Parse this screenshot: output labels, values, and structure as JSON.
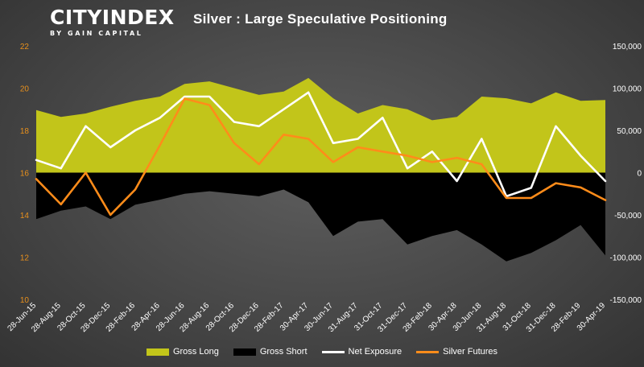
{
  "header": {
    "logo_main": "CITYINDEX",
    "logo_sub": "BY GAIN CAPITAL",
    "title": "Silver : Large Speculative Positioning"
  },
  "colors": {
    "gross_long": "#c2c51a",
    "gross_short": "#000000",
    "net_exposure": "#ffffff",
    "silver_futures": "#ff8c1a",
    "left_axis_text": "#e8901c",
    "right_axis_text": "#ffffff"
  },
  "chart_data": {
    "type": "area",
    "title": "Silver : Large Speculative Positioning",
    "x": [
      "28-Jun-15",
      "28-Aug-15",
      "28-Oct-15",
      "28-Dec-15",
      "28-Feb-16",
      "28-Apr-16",
      "28-Jun-16",
      "28-Aug-16",
      "28-Oct-16",
      "28-Dec-16",
      "28-Feb-17",
      "30-Apr-17",
      "30-Jun-17",
      "31-Aug-17",
      "31-Oct-17",
      "31-Dec-17",
      "28-Feb-18",
      "30-Apr-18",
      "30-Jun-18",
      "31-Aug-18",
      "31-Oct-18",
      "31-Dec-18",
      "28-Feb-19",
      "30-Apr-19"
    ],
    "left_axis": {
      "min": 10,
      "max": 22,
      "ticks": [
        10,
        12,
        14,
        16,
        18,
        20,
        22
      ]
    },
    "right_axis": {
      "min": -150000,
      "max": 150000,
      "ticks": [
        -150000,
        -100000,
        -50000,
        0,
        50000,
        100000,
        150000
      ],
      "tick_labels": [
        "-150,000",
        "-100,000",
        "-50,000",
        "0",
        "50,000",
        "100,000",
        "150,000"
      ]
    },
    "legend_position": "bottom",
    "series": [
      {
        "name": "Gross Long",
        "axis": "right",
        "style": "area",
        "values": [
          74000,
          66000,
          70000,
          78000,
          85000,
          90000,
          105000,
          108000,
          100000,
          92000,
          96000,
          112000,
          88000,
          70000,
          80000,
          75000,
          62000,
          66000,
          90000,
          88000,
          82000,
          95000,
          85000,
          86000
        ]
      },
      {
        "name": "Gross Short",
        "axis": "right",
        "style": "area",
        "values": [
          -55000,
          -45000,
          -40000,
          -55000,
          -38000,
          -32000,
          -25000,
          -22000,
          -25000,
          -28000,
          -20000,
          -35000,
          -75000,
          -58000,
          -55000,
          -85000,
          -75000,
          -68000,
          -85000,
          -105000,
          -95000,
          -80000,
          -62000,
          -98000
        ]
      },
      {
        "name": "Net Exposure",
        "axis": "right",
        "style": "line",
        "values": [
          15000,
          5000,
          55000,
          30000,
          50000,
          65000,
          90000,
          90000,
          60000,
          55000,
          75000,
          95000,
          35000,
          40000,
          65000,
          5000,
          25000,
          -10000,
          40000,
          -28000,
          -18000,
          55000,
          20000,
          -10000
        ]
      },
      {
        "name": "Silver Futures",
        "axis": "left",
        "style": "line",
        "values": [
          15.7,
          14.5,
          16.0,
          14.0,
          15.2,
          17.3,
          19.5,
          19.2,
          17.4,
          16.4,
          17.8,
          17.6,
          16.5,
          17.2,
          17.0,
          16.8,
          16.5,
          16.7,
          16.4,
          14.8,
          14.8,
          15.5,
          15.3,
          14.7
        ]
      }
    ]
  }
}
